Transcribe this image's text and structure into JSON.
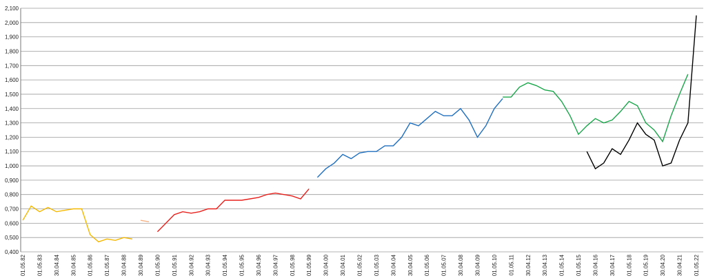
{
  "chart_data": {
    "type": "line",
    "categories": [
      "01.05.82",
      null,
      "01.05.83",
      null,
      "30.04.84",
      null,
      "30.04.85",
      null,
      "01.05.86",
      null,
      "01.05.87",
      null,
      "30.04.88",
      null,
      "30.04.89",
      null,
      "01.05.90",
      null,
      "01.05.91",
      null,
      "30.04.92",
      null,
      "30.04.93",
      null,
      "01.05.94",
      null,
      "01.05.95",
      null,
      "30.04.96",
      null,
      "30.04.97",
      null,
      "01.05.98",
      null,
      "01.05.99",
      null,
      "30.04.00",
      null,
      "30.04.01",
      null,
      "01.05.02",
      null,
      "01.05.03",
      null,
      "30.04.04",
      null,
      "30.04.05",
      null,
      "01.05.06",
      null,
      "01.05.07",
      null,
      "30.04.08",
      null,
      "30.04.09",
      null,
      "01.05.10",
      null,
      "01.05.11",
      null,
      "30.04.12",
      null,
      "30.04.13",
      null,
      "01.05.14",
      null,
      "01.05.15",
      null,
      "30.04.16",
      null,
      "30.04.17",
      null,
      "01.05.18",
      null,
      "01.05.19",
      null,
      "30.04.20",
      null,
      "30.04.21",
      null,
      "01.05.22"
    ],
    "series": [
      {
        "color": "#f5b800",
        "values": [
          0.62,
          0.72,
          0.68,
          0.71,
          0.68,
          0.69,
          0.7,
          0.7,
          0.52,
          0.47,
          0.49,
          0.48,
          0.5,
          0.49,
          null,
          null,
          null,
          null,
          null,
          null,
          null,
          null,
          null,
          null,
          null,
          null,
          null,
          null,
          null,
          null,
          null,
          null,
          null,
          null,
          null,
          null,
          null,
          null,
          null,
          null,
          null,
          null,
          null,
          null,
          null,
          null,
          null,
          null,
          null,
          null,
          null,
          null,
          null,
          null,
          null,
          null,
          null,
          null,
          null,
          null,
          null,
          null,
          null,
          null,
          null,
          null,
          null,
          null,
          null,
          null,
          null,
          null,
          null,
          null,
          null,
          null,
          null,
          null,
          null,
          null,
          null
        ]
      },
      {
        "color": "#f4b183",
        "values": [
          null,
          null,
          null,
          null,
          null,
          null,
          null,
          null,
          null,
          null,
          null,
          null,
          null,
          null,
          0.62,
          0.61,
          null,
          null,
          null,
          null,
          null,
          null,
          null,
          null,
          null,
          null,
          null,
          null,
          null,
          null,
          null,
          null,
          null,
          null,
          null,
          null,
          null,
          null,
          null,
          null,
          null,
          null,
          null,
          null,
          null,
          null,
          null,
          null,
          null,
          null,
          null,
          null,
          null,
          null,
          null,
          null,
          null,
          null,
          null,
          null,
          null,
          null,
          null,
          null,
          null,
          null,
          null,
          null,
          null,
          null,
          null,
          null,
          null,
          null,
          null,
          null,
          null,
          null,
          null,
          null,
          null
        ]
      },
      {
        "color": "#e8201c",
        "values": [
          null,
          null,
          null,
          null,
          null,
          null,
          null,
          null,
          null,
          null,
          null,
          null,
          null,
          null,
          null,
          null,
          0.54,
          0.6,
          0.66,
          0.68,
          0.67,
          0.68,
          0.7,
          0.7,
          0.76,
          0.76,
          0.76,
          0.77,
          0.78,
          0.8,
          0.81,
          0.8,
          0.79,
          0.77,
          0.84,
          null,
          null,
          null,
          null,
          null,
          null,
          null,
          null,
          null,
          null,
          null,
          null,
          null,
          null,
          null,
          null,
          null,
          null,
          null,
          null,
          null,
          null,
          null,
          null,
          null,
          null,
          null,
          null,
          null,
          null,
          null,
          null,
          null,
          null,
          null,
          null,
          null,
          null,
          null,
          null,
          null,
          null,
          null,
          null,
          null,
          null
        ]
      },
      {
        "color": "#1f6fbf",
        "values": [
          null,
          null,
          null,
          null,
          null,
          null,
          null,
          null,
          null,
          null,
          null,
          null,
          null,
          null,
          null,
          null,
          null,
          null,
          null,
          null,
          null,
          null,
          null,
          null,
          null,
          null,
          null,
          null,
          null,
          null,
          null,
          null,
          null,
          null,
          null,
          0.92,
          0.98,
          1.02,
          1.08,
          1.05,
          1.09,
          1.1,
          1.1,
          1.14,
          1.14,
          1.2,
          1.3,
          1.28,
          1.33,
          1.38,
          1.35,
          1.35,
          1.4,
          1.32,
          1.2,
          1.28,
          1.4,
          1.47,
          null,
          null,
          null,
          null,
          null,
          null,
          null,
          null,
          null,
          null,
          null,
          null,
          null,
          null,
          null,
          null,
          null,
          null,
          null,
          null,
          null,
          null,
          null
        ]
      },
      {
        "color": "#1aa64a",
        "values": [
          null,
          null,
          null,
          null,
          null,
          null,
          null,
          null,
          null,
          null,
          null,
          null,
          null,
          null,
          null,
          null,
          null,
          null,
          null,
          null,
          null,
          null,
          null,
          null,
          null,
          null,
          null,
          null,
          null,
          null,
          null,
          null,
          null,
          null,
          null,
          null,
          null,
          null,
          null,
          null,
          null,
          null,
          null,
          null,
          null,
          null,
          null,
          null,
          null,
          null,
          null,
          null,
          null,
          null,
          null,
          null,
          null,
          1.48,
          1.48,
          1.55,
          1.58,
          1.56,
          1.53,
          1.52,
          1.45,
          1.35,
          1.22,
          1.28,
          1.33,
          1.3,
          1.32,
          1.38,
          1.45,
          1.42,
          1.3,
          1.25,
          1.17,
          1.35,
          1.5,
          1.64,
          null
        ]
      },
      {
        "color": "#000000",
        "values": [
          null,
          null,
          null,
          null,
          null,
          null,
          null,
          null,
          null,
          null,
          null,
          null,
          null,
          null,
          null,
          null,
          null,
          null,
          null,
          null,
          null,
          null,
          null,
          null,
          null,
          null,
          null,
          null,
          null,
          null,
          null,
          null,
          null,
          null,
          null,
          null,
          null,
          null,
          null,
          null,
          null,
          null,
          null,
          null,
          null,
          null,
          null,
          null,
          null,
          null,
          null,
          null,
          null,
          null,
          null,
          null,
          null,
          null,
          null,
          null,
          null,
          null,
          null,
          null,
          null,
          null,
          null,
          1.1,
          0.98,
          1.02,
          1.12,
          1.08,
          1.18,
          1.3,
          1.22,
          1.18,
          1.0,
          1.02,
          1.18,
          1.3,
          2.05
        ]
      }
    ],
    "ylim": [
      0.4,
      2.1
    ],
    "yticks": [
      {
        "value": 0.4,
        "label": "0,400"
      },
      {
        "value": 0.5,
        "label": "0,500"
      },
      {
        "value": 0.6,
        "label": "0,600"
      },
      {
        "value": 0.7,
        "label": "0,700"
      },
      {
        "value": 0.8,
        "label": "0,800"
      },
      {
        "value": 0.9,
        "label": "0,900"
      },
      {
        "value": 1.0,
        "label": "1,000"
      },
      {
        "value": 1.1,
        "label": "1,100"
      },
      {
        "value": 1.2,
        "label": "1,200"
      },
      {
        "value": 1.3,
        "label": "1,300"
      },
      {
        "value": 1.4,
        "label": "1,400"
      },
      {
        "value": 1.5,
        "label": "1,500"
      },
      {
        "value": 1.6,
        "label": "1,600"
      },
      {
        "value": 1.7,
        "label": "1,700"
      },
      {
        "value": 1.8,
        "label": "1,800"
      },
      {
        "value": 1.9,
        "label": "1,900"
      },
      {
        "value": 2.0,
        "label": "2,000"
      },
      {
        "value": 2.1,
        "label": "2,100"
      }
    ],
    "grid": true
  }
}
